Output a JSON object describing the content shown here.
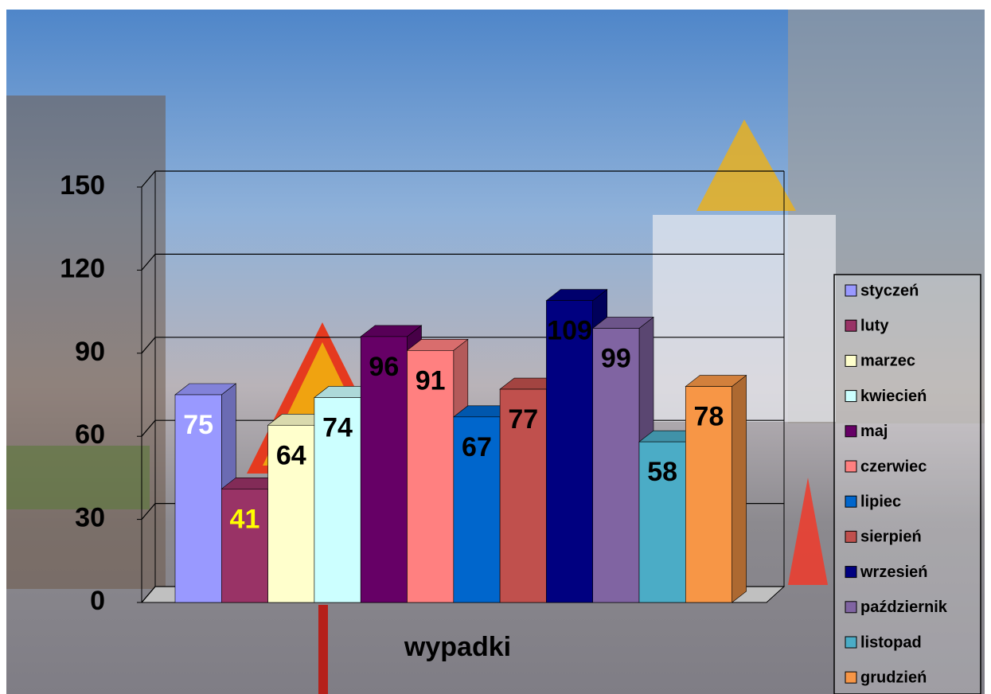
{
  "chart_data": {
    "type": "bar3d",
    "categories": [
      "wypadki"
    ],
    "series": [
      {
        "name": "styczeń",
        "color": "#9999ff",
        "label_color": "#ffffff",
        "values": [
          75
        ]
      },
      {
        "name": "luty",
        "color": "#993366",
        "label_color": "#ffff00",
        "values": [
          41
        ]
      },
      {
        "name": "marzec",
        "color": "#ffffcc",
        "label_color": "#000000",
        "values": [
          64
        ]
      },
      {
        "name": "kwiecień",
        "color": "#ccffff",
        "label_color": "#000000",
        "values": [
          74
        ]
      },
      {
        "name": "maj",
        "color": "#660066",
        "label_color": "#000000",
        "values": [
          96
        ]
      },
      {
        "name": "czerwiec",
        "color": "#ff8080",
        "label_color": "#000000",
        "values": [
          91
        ]
      },
      {
        "name": "lipiec",
        "color": "#0066cc",
        "label_color": "#000000",
        "values": [
          67
        ]
      },
      {
        "name": "sierpień",
        "color": "#c0504d",
        "label_color": "#000000",
        "values": [
          77
        ]
      },
      {
        "name": "wrzesień",
        "color": "#000080",
        "label_color": "#000000",
        "values": [
          109
        ]
      },
      {
        "name": "październik",
        "color": "#8064a2",
        "label_color": "#000000",
        "values": [
          99
        ]
      },
      {
        "name": "listopad",
        "color": "#4bacc6",
        "label_color": "#000000",
        "values": [
          58
        ]
      },
      {
        "name": "grudzień",
        "color": "#f79646",
        "label_color": "#000000",
        "values": [
          78
        ]
      }
    ],
    "ylim": [
      0,
      150
    ],
    "yticks": [
      0,
      30,
      60,
      90,
      120,
      150
    ],
    "grid": true,
    "legend": "right"
  }
}
